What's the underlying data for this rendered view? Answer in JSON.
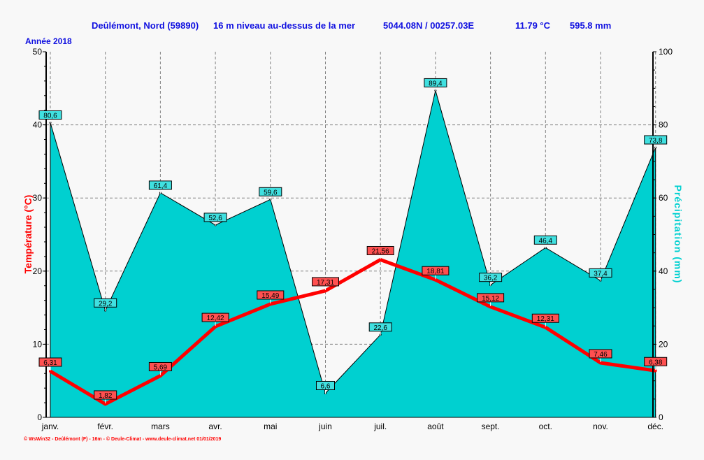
{
  "header": {
    "station": "Deûlémont, Nord (59890)",
    "altitude": "16 m niveau au-dessus de la mer",
    "coords": "5044.08N / 00257.03E",
    "mean_temp": "11.79 °C",
    "total_precip": "595.8 mm",
    "year": "Année  2018"
  },
  "footer": "© WsWin32  -  Deûlémont (F) - 16m  -  © Deule-Climat - www.deule-climat.net  01/01/2019",
  "colors": {
    "temperature": "#ff0000",
    "precipitation": "#00d0d0",
    "title": "#1010e0"
  },
  "chart_data": {
    "type": "area+line",
    "categories": [
      "janv.",
      "févr.",
      "mars",
      "avr.",
      "mai",
      "juin",
      "juil.",
      "août",
      "sept.",
      "oct.",
      "nov.",
      "déc."
    ],
    "series": [
      {
        "name": "Précipitation (mm)",
        "axis": "right",
        "type": "area",
        "values": [
          80.6,
          29.2,
          61.4,
          52.6,
          59.6,
          6.6,
          22.6,
          89.4,
          36.2,
          46.4,
          37.4,
          73.8
        ],
        "labels": [
          "80,6",
          "29,2",
          "61,4",
          "52,6",
          "59,6",
          "6,6",
          "22,6",
          "89,4",
          "36,2",
          "46,4",
          "37,4",
          "73,8"
        ]
      },
      {
        "name": "Température (°C)",
        "axis": "left",
        "type": "line",
        "values": [
          6.31,
          1.82,
          5.69,
          12.42,
          15.49,
          17.31,
          21.56,
          18.81,
          15.12,
          12.31,
          7.46,
          6.38
        ],
        "labels": [
          "6,31",
          "1,82",
          "5,69",
          "12,42",
          "15,49",
          "17,31",
          "21,56",
          "18,81",
          "15,12",
          "12,31",
          "7,46",
          "6,38"
        ]
      }
    ],
    "ylabel": "Température  (°C)",
    "y2label": "Précipitation  (mm)",
    "ylim": [
      0,
      50
    ],
    "y2lim": [
      0,
      100
    ],
    "yticks": [
      "0",
      "10",
      "20",
      "30",
      "40",
      "50"
    ],
    "y2ticks": [
      "0",
      "20",
      "40",
      "60",
      "80",
      "100"
    ],
    "grid": true
  }
}
